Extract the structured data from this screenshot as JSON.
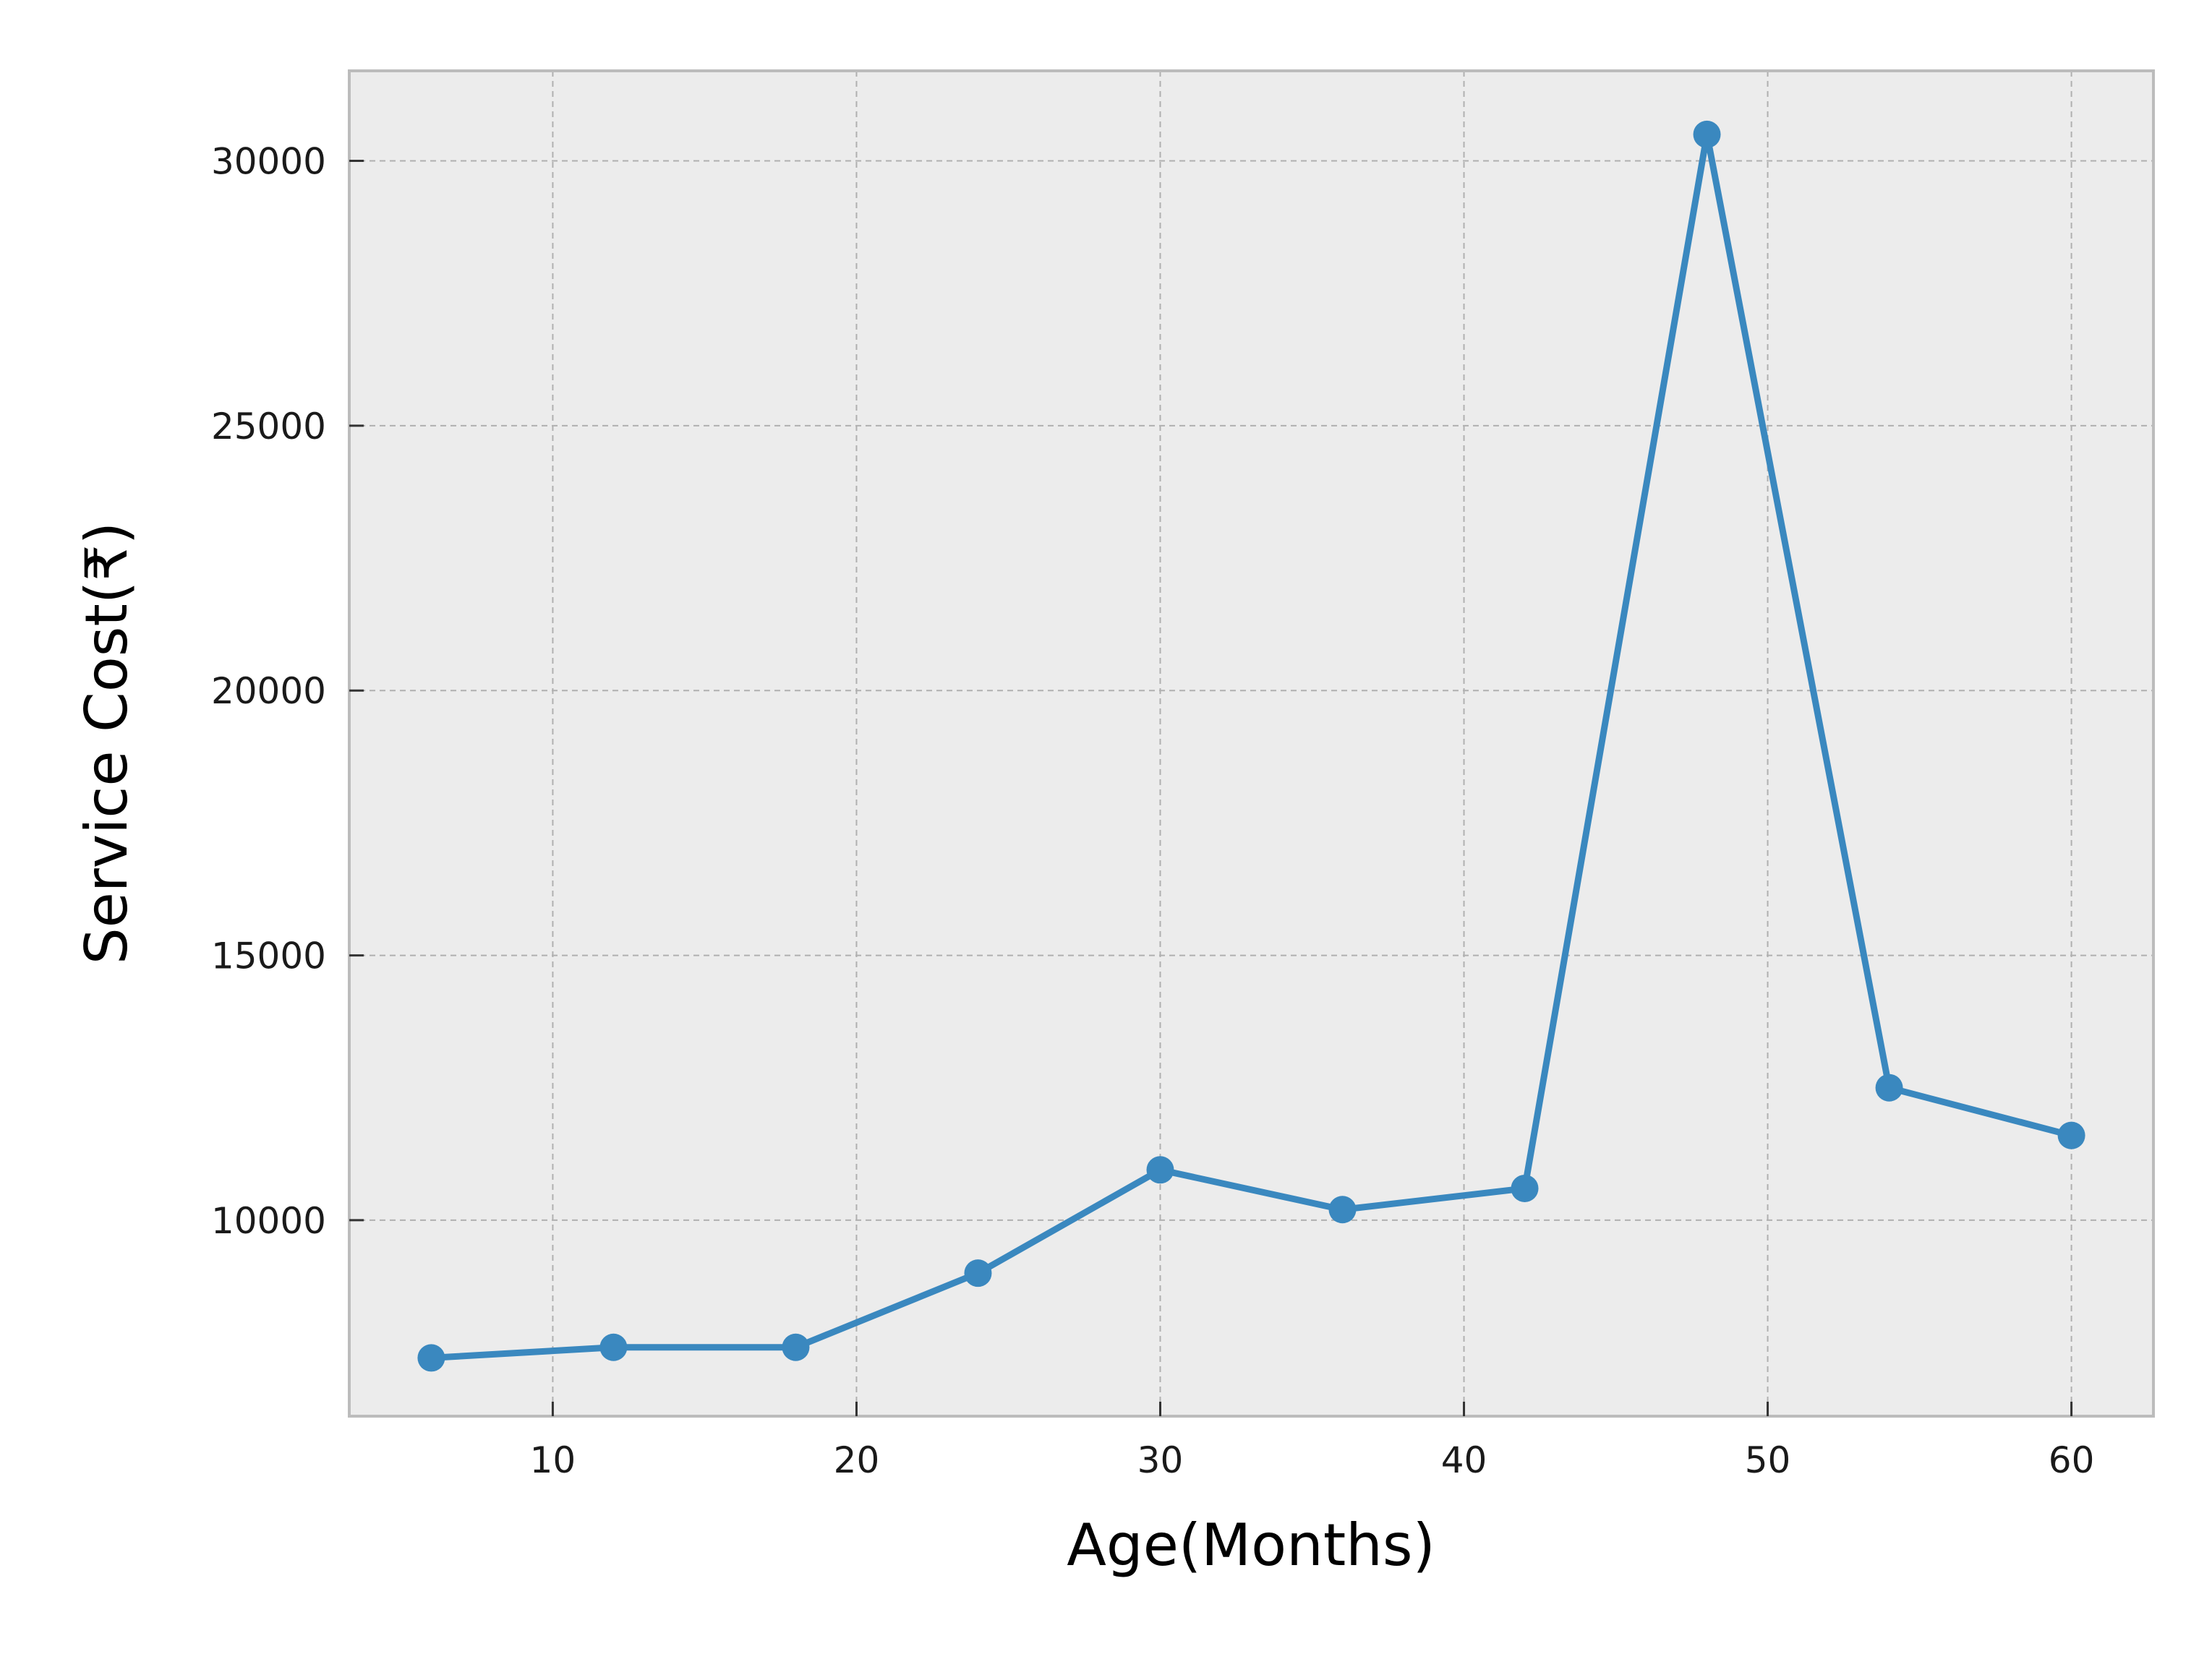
{
  "chart_data": {
    "type": "line",
    "title": "",
    "xlabel": "Age(Months)",
    "ylabel": "Service Cost(₹)",
    "xlim": [
      3.3,
      62.7
    ],
    "ylim": [
      6300,
      31700
    ],
    "xticks": [
      10,
      20,
      30,
      40,
      50,
      60
    ],
    "yticks": [
      10000,
      15000,
      20000,
      25000,
      30000
    ],
    "x": [
      6,
      12,
      18,
      24,
      30,
      36,
      42,
      48,
      54,
      60
    ],
    "series": [
      {
        "values": [
          7400,
          7600,
          7600,
          9000,
          10950,
          10200,
          10600,
          30500,
          12500,
          11600
        ]
      }
    ],
    "grid": true,
    "legend": "none",
    "colors": {
      "line": "#3a88bf",
      "plot_background": "#ececec",
      "grid": "#b0b0b0",
      "frame": "#bcbcbc"
    }
  }
}
